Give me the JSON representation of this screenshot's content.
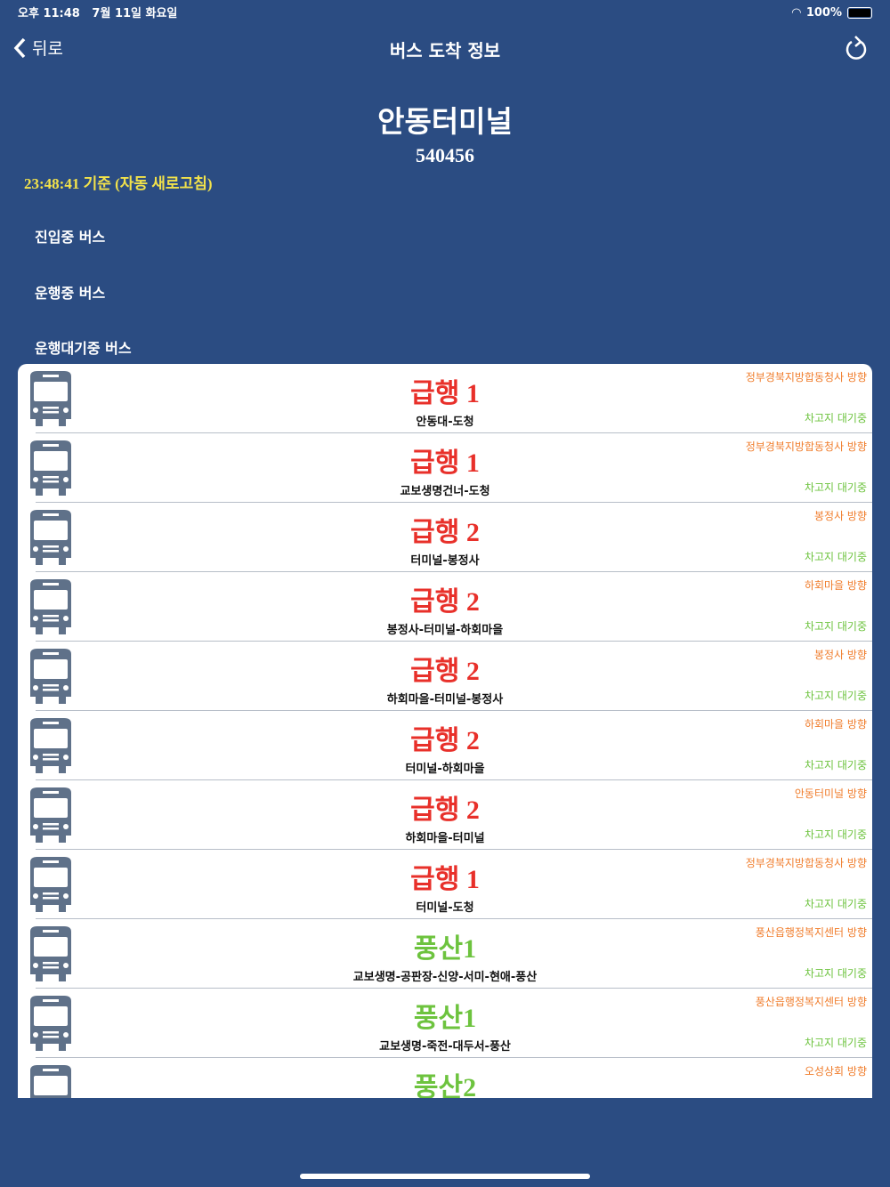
{
  "status_bar": {
    "time": "오후 11:48",
    "date": "7월 11일 화요일",
    "battery": "100%",
    "battery_level": 100
  },
  "nav": {
    "back_label": "뒤로",
    "title": "버스 도착 정보",
    "refresh_icon": "refresh-icon"
  },
  "stop": {
    "name": "안동터미널",
    "number": "540456",
    "updated": "23:48:41 기준 (자동 새로고침)"
  },
  "sections": [
    "진입중 버스",
    "운행중 버스",
    "운행대기중 버스"
  ],
  "colors": {
    "background": "#2b4c82",
    "express": "#e8302a",
    "local": "#6dc33e",
    "direction": "#f07d2c",
    "status": "#6dc33e"
  },
  "buses": [
    {
      "name": "급행 1",
      "route": "안동대-도청",
      "direction": "정부경북지방합동청사 방향",
      "status": "차고지 대기중",
      "type": "express"
    },
    {
      "name": "급행 1",
      "route": "교보생명건너-도청",
      "direction": "정부경북지방합동청사 방향",
      "status": "차고지 대기중",
      "type": "express"
    },
    {
      "name": "급행 2",
      "route": "터미널-봉정사",
      "direction": "봉정사 방향",
      "status": "차고지 대기중",
      "type": "express"
    },
    {
      "name": "급행 2",
      "route": "봉정사-터미널-하회마을",
      "direction": "하회마을 방향",
      "status": "차고지 대기중",
      "type": "express"
    },
    {
      "name": "급행 2",
      "route": "하회마을-터미널-봉정사",
      "direction": "봉정사 방향",
      "status": "차고지 대기중",
      "type": "express"
    },
    {
      "name": "급행 2",
      "route": "터미널-하회마을",
      "direction": "하회마을 방향",
      "status": "차고지 대기중",
      "type": "express"
    },
    {
      "name": "급행 2",
      "route": "하회마을-터미널",
      "direction": "안동터미널 방향",
      "status": "차고지 대기중",
      "type": "express"
    },
    {
      "name": "급행 1",
      "route": "터미널-도청",
      "direction": "정부경북지방합동청사 방향",
      "status": "차고지 대기중",
      "type": "express"
    },
    {
      "name": "풍산1",
      "route": "교보생명-공판장-신양-서미-현애-풍산",
      "direction": "풍산읍행정복지센터 방향",
      "status": "차고지 대기중",
      "type": "local"
    },
    {
      "name": "풍산1",
      "route": "교보생명-죽전-대두서-풍산",
      "direction": "풍산읍행정복지센터 방향",
      "status": "차고지 대기중",
      "type": "local"
    },
    {
      "name": "풍산2",
      "route": "",
      "direction": "오성상회 방향",
      "status": "",
      "type": "local"
    }
  ]
}
